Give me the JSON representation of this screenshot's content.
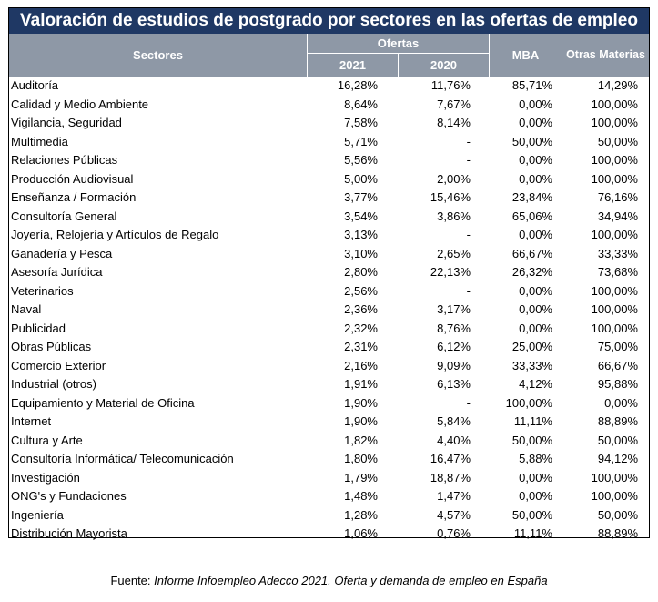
{
  "title": "Valoración de estudios de postgrado por sectores en las ofertas de empleo",
  "headers": {
    "sectores": "Sectores",
    "ofertas": "Ofertas",
    "y2021": "2021",
    "y2020": "2020",
    "mba": "MBA",
    "otras": "Otras Materias"
  },
  "rows": [
    {
      "sector": "Auditoría",
      "y2021": "16,28%",
      "y2020": "11,76%",
      "mba": "85,71%",
      "otras": "14,29%"
    },
    {
      "sector": "Calidad y Medio Ambiente",
      "y2021": "8,64%",
      "y2020": "7,67%",
      "mba": "0,00%",
      "otras": "100,00%"
    },
    {
      "sector": "Vigilancia, Seguridad",
      "y2021": "7,58%",
      "y2020": "8,14%",
      "mba": "0,00%",
      "otras": "100,00%"
    },
    {
      "sector": "Multimedia",
      "y2021": "5,71%",
      "y2020": "-",
      "mba": "50,00%",
      "otras": "50,00%"
    },
    {
      "sector": "Relaciones Públicas",
      "y2021": "5,56%",
      "y2020": "-",
      "mba": "0,00%",
      "otras": "100,00%"
    },
    {
      "sector": "Producción Audiovisual",
      "y2021": "5,00%",
      "y2020": "2,00%",
      "mba": "0,00%",
      "otras": "100,00%"
    },
    {
      "sector": "Enseñanza / Formación",
      "y2021": "3,77%",
      "y2020": "15,46%",
      "mba": "23,84%",
      "otras": "76,16%"
    },
    {
      "sector": "Consultoría General",
      "y2021": "3,54%",
      "y2020": "3,86%",
      "mba": "65,06%",
      "otras": "34,94%"
    },
    {
      "sector": "Joyería, Relojería y Artículos de Regalo",
      "y2021": "3,13%",
      "y2020": "-",
      "mba": "0,00%",
      "otras": "100,00%"
    },
    {
      "sector": "Ganadería y Pesca",
      "y2021": "3,10%",
      "y2020": "2,65%",
      "mba": "66,67%",
      "otras": "33,33%"
    },
    {
      "sector": "Asesoría Jurídica",
      "y2021": "2,80%",
      "y2020": "22,13%",
      "mba": "26,32%",
      "otras": "73,68%"
    },
    {
      "sector": "Veterinarios",
      "y2021": "2,56%",
      "y2020": "-",
      "mba": "0,00%",
      "otras": "100,00%"
    },
    {
      "sector": "Naval",
      "y2021": "2,36%",
      "y2020": "3,17%",
      "mba": "0,00%",
      "otras": "100,00%"
    },
    {
      "sector": "Publicidad",
      "y2021": "2,32%",
      "y2020": "8,76%",
      "mba": "0,00%",
      "otras": "100,00%"
    },
    {
      "sector": "Obras Públicas",
      "y2021": "2,31%",
      "y2020": "6,12%",
      "mba": "25,00%",
      "otras": "75,00%"
    },
    {
      "sector": "Comercio Exterior",
      "y2021": "2,16%",
      "y2020": "9,09%",
      "mba": "33,33%",
      "otras": "66,67%"
    },
    {
      "sector": "Industrial (otros)",
      "y2021": "1,91%",
      "y2020": "6,13%",
      "mba": "4,12%",
      "otras": "95,88%"
    },
    {
      "sector": "Equipamiento y Material de Oficina",
      "y2021": "1,90%",
      "y2020": "-",
      "mba": "100,00%",
      "otras": "0,00%"
    },
    {
      "sector": "Internet",
      "y2021": "1,90%",
      "y2020": "5,84%",
      "mba": "11,11%",
      "otras": "88,89%"
    },
    {
      "sector": "Cultura y Arte",
      "y2021": "1,82%",
      "y2020": "4,40%",
      "mba": "50,00%",
      "otras": "50,00%"
    },
    {
      "sector": "Consultoría Informática/ Telecomunicación",
      "y2021": "1,80%",
      "y2020": "16,47%",
      "mba": "5,88%",
      "otras": "94,12%"
    },
    {
      "sector": "Investigación",
      "y2021": "1,79%",
      "y2020": "18,87%",
      "mba": "0,00%",
      "otras": "100,00%"
    },
    {
      "sector": "ONG's y Fundaciones",
      "y2021": "1,48%",
      "y2020": "1,47%",
      "mba": "0,00%",
      "otras": "100,00%"
    },
    {
      "sector": "Ingeniería",
      "y2021": "1,28%",
      "y2020": "4,57%",
      "mba": "50,00%",
      "otras": "50,00%"
    },
    {
      "sector": "Distribución Mayorista",
      "y2021": "1,06%",
      "y2020": "0,76%",
      "mba": "11,11%",
      "otras": "88,89%"
    }
  ],
  "source": {
    "prefix": "Fuente: ",
    "text": "Informe Infoempleo Adecco 2021. Oferta y demanda de empleo en España"
  }
}
